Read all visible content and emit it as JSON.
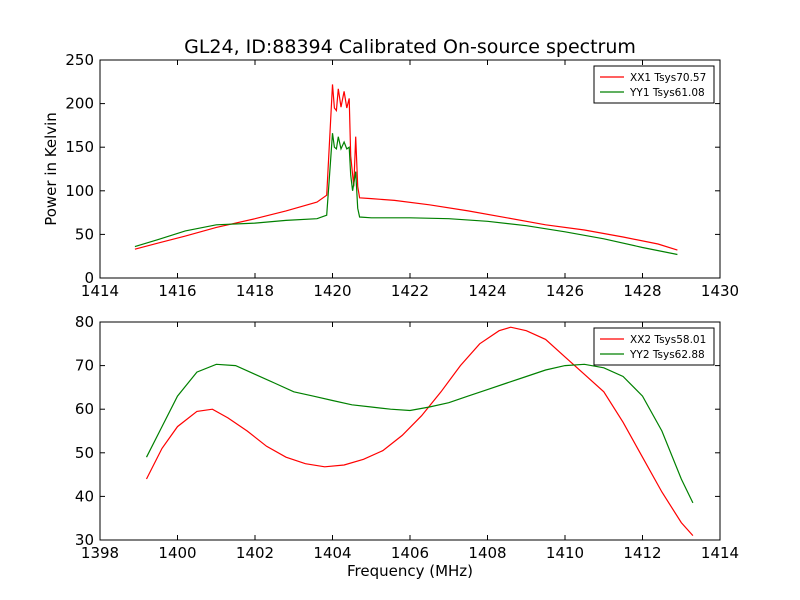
{
  "title": "GL24, ID:88394 Calibrated On-source spectrum",
  "chart_data": [
    {
      "type": "line",
      "ylabel": "Power in Kelvin",
      "xlabel": "",
      "xlim": [
        1414,
        1430
      ],
      "ylim": [
        0,
        250
      ],
      "xticks": [
        "1414",
        "1416",
        "1418",
        "1420",
        "1422",
        "1424",
        "1426",
        "1428",
        "1430"
      ],
      "yticks": [
        "0",
        "50",
        "100",
        "150",
        "200",
        "250"
      ],
      "grid": false,
      "legend": "top-right",
      "series": [
        {
          "name": "XX1 Tsys70.57",
          "color": "#ff0000",
          "points": [
            [
              1414.9,
              33
            ],
            [
              1415.5,
              40
            ],
            [
              1416.2,
              48
            ],
            [
              1417,
              58
            ],
            [
              1418,
              68
            ],
            [
              1418.8,
              77
            ],
            [
              1419.6,
              87
            ],
            [
              1419.85,
              95
            ],
            [
              1419.95,
              180
            ],
            [
              1420.0,
              222
            ],
            [
              1420.05,
              195
            ],
            [
              1420.1,
              192
            ],
            [
              1420.15,
              217
            ],
            [
              1420.22,
              196
            ],
            [
              1420.3,
              214
            ],
            [
              1420.37,
              195
            ],
            [
              1420.43,
              206
            ],
            [
              1420.47,
              140
            ],
            [
              1420.55,
              105
            ],
            [
              1420.6,
              162
            ],
            [
              1420.65,
              105
            ],
            [
              1420.7,
              92
            ],
            [
              1421,
              91
            ],
            [
              1421.6,
              89
            ],
            [
              1422.5,
              84
            ],
            [
              1423.5,
              77
            ],
            [
              1424.5,
              69
            ],
            [
              1425.5,
              61
            ],
            [
              1426.5,
              55
            ],
            [
              1427.5,
              47
            ],
            [
              1428.4,
              39
            ],
            [
              1428.9,
              32
            ]
          ]
        },
        {
          "name": "YY1 Tsys61.08",
          "color": "#008000",
          "points": [
            [
              1414.9,
              36
            ],
            [
              1415.5,
              44
            ],
            [
              1416.2,
              54
            ],
            [
              1417,
              61
            ],
            [
              1418,
              63
            ],
            [
              1418.8,
              66
            ],
            [
              1419.6,
              68
            ],
            [
              1419.85,
              72
            ],
            [
              1419.95,
              135
            ],
            [
              1420.0,
              166
            ],
            [
              1420.05,
              150
            ],
            [
              1420.1,
              148
            ],
            [
              1420.15,
              162
            ],
            [
              1420.22,
              148
            ],
            [
              1420.3,
              156
            ],
            [
              1420.37,
              148
            ],
            [
              1420.43,
              150
            ],
            [
              1420.47,
              118
            ],
            [
              1420.52,
              100
            ],
            [
              1420.6,
              122
            ],
            [
              1420.65,
              80
            ],
            [
              1420.7,
              70
            ],
            [
              1421,
              69
            ],
            [
              1422,
              69
            ],
            [
              1423,
              68
            ],
            [
              1424,
              65
            ],
            [
              1425,
              60
            ],
            [
              1426,
              53
            ],
            [
              1427,
              45
            ],
            [
              1428,
              35
            ],
            [
              1428.9,
              27
            ]
          ]
        }
      ]
    },
    {
      "type": "line",
      "ylabel": "",
      "xlabel": "Frequency (MHz)",
      "xlim": [
        1398,
        1414
      ],
      "ylim": [
        30,
        80
      ],
      "xticks": [
        "1398",
        "1400",
        "1402",
        "1404",
        "1406",
        "1408",
        "1410",
        "1412",
        "1414"
      ],
      "yticks": [
        "30",
        "40",
        "50",
        "60",
        "70",
        "80"
      ],
      "grid": false,
      "legend": "top-right",
      "series": [
        {
          "name": "XX2 Tsys58.01",
          "color": "#ff0000",
          "points": [
            [
              1399.2,
              44
            ],
            [
              1399.6,
              51
            ],
            [
              1400,
              56
            ],
            [
              1400.5,
              59.5
            ],
            [
              1400.9,
              60
            ],
            [
              1401.3,
              58
            ],
            [
              1401.8,
              55
            ],
            [
              1402.3,
              51.5
            ],
            [
              1402.8,
              49
            ],
            [
              1403.3,
              47.5
            ],
            [
              1403.8,
              46.8
            ],
            [
              1404.3,
              47.2
            ],
            [
              1404.8,
              48.5
            ],
            [
              1405.3,
              50.5
            ],
            [
              1405.8,
              54
            ],
            [
              1406.3,
              58.5
            ],
            [
              1406.8,
              64
            ],
            [
              1407.3,
              70
            ],
            [
              1407.8,
              75
            ],
            [
              1408.3,
              78
            ],
            [
              1408.6,
              78.8
            ],
            [
              1409,
              78
            ],
            [
              1409.5,
              76
            ],
            [
              1410,
              72
            ],
            [
              1410.5,
              68
            ],
            [
              1411,
              64
            ],
            [
              1411.5,
              57
            ],
            [
              1412,
              49
            ],
            [
              1412.5,
              41
            ],
            [
              1413,
              34
            ],
            [
              1413.3,
              31
            ]
          ]
        },
        {
          "name": "YY2 Tsys62.88",
          "color": "#008000",
          "points": [
            [
              1399.2,
              49
            ],
            [
              1399.6,
              56
            ],
            [
              1400,
              63
            ],
            [
              1400.5,
              68.5
            ],
            [
              1401,
              70.3
            ],
            [
              1401.5,
              70
            ],
            [
              1402,
              68
            ],
            [
              1402.5,
              66
            ],
            [
              1403,
              64
            ],
            [
              1403.5,
              63
            ],
            [
              1404,
              62
            ],
            [
              1404.5,
              61
            ],
            [
              1405,
              60.5
            ],
            [
              1405.5,
              60
            ],
            [
              1406,
              59.7
            ],
            [
              1406.5,
              60.5
            ],
            [
              1407,
              61.5
            ],
            [
              1407.5,
              63
            ],
            [
              1408,
              64.5
            ],
            [
              1408.5,
              66
            ],
            [
              1409,
              67.5
            ],
            [
              1409.5,
              69
            ],
            [
              1410,
              70
            ],
            [
              1410.5,
              70.3
            ],
            [
              1411,
              69.5
            ],
            [
              1411.5,
              67.5
            ],
            [
              1412,
              63
            ],
            [
              1412.5,
              55
            ],
            [
              1413,
              44
            ],
            [
              1413.3,
              38.5
            ]
          ]
        }
      ]
    }
  ]
}
